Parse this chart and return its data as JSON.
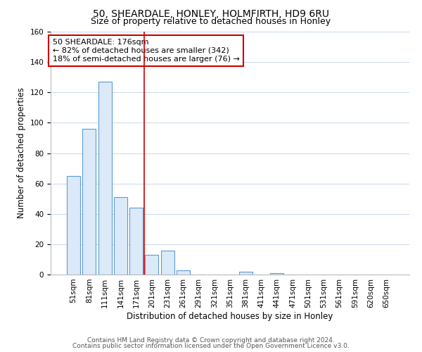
{
  "title": "50, SHEARDALE, HONLEY, HOLMFIRTH, HD9 6RU",
  "subtitle": "Size of property relative to detached houses in Honley",
  "xlabel": "Distribution of detached houses by size in Honley",
  "ylabel": "Number of detached properties",
  "bar_labels": [
    "51sqm",
    "81sqm",
    "111sqm",
    "141sqm",
    "171sqm",
    "201sqm",
    "231sqm",
    "261sqm",
    "291sqm",
    "321sqm",
    "351sqm",
    "381sqm",
    "411sqm",
    "441sqm",
    "471sqm",
    "501sqm",
    "531sqm",
    "561sqm",
    "591sqm",
    "620sqm",
    "650sqm"
  ],
  "bar_values": [
    65,
    96,
    127,
    51,
    44,
    13,
    16,
    3,
    0,
    0,
    0,
    2,
    0,
    1,
    0,
    0,
    0,
    0,
    0,
    0,
    0
  ],
  "bar_color": "#dce9f8",
  "bar_edge_color": "#5b9bd5",
  "vline_x": 4.5,
  "vline_color": "#cc0000",
  "annotation_text": "50 SHEARDALE: 176sqm\n← 82% of detached houses are smaller (342)\n18% of semi-detached houses are larger (76) →",
  "annotation_box_color": "#ffffff",
  "annotation_box_edge": "#cc0000",
  "ylim": [
    0,
    160
  ],
  "yticks": [
    0,
    20,
    40,
    60,
    80,
    100,
    120,
    140,
    160
  ],
  "footer_line1": "Contains HM Land Registry data © Crown copyright and database right 2024.",
  "footer_line2": "Contains public sector information licensed under the Open Government Licence v3.0.",
  "background_color": "#ffffff",
  "plot_bg_color": "#ffffff",
  "grid_color": "#c8d8ec",
  "title_fontsize": 10,
  "subtitle_fontsize": 9,
  "axis_label_fontsize": 8.5,
  "tick_fontsize": 7.5,
  "annotation_fontsize": 8,
  "footer_fontsize": 6.5
}
